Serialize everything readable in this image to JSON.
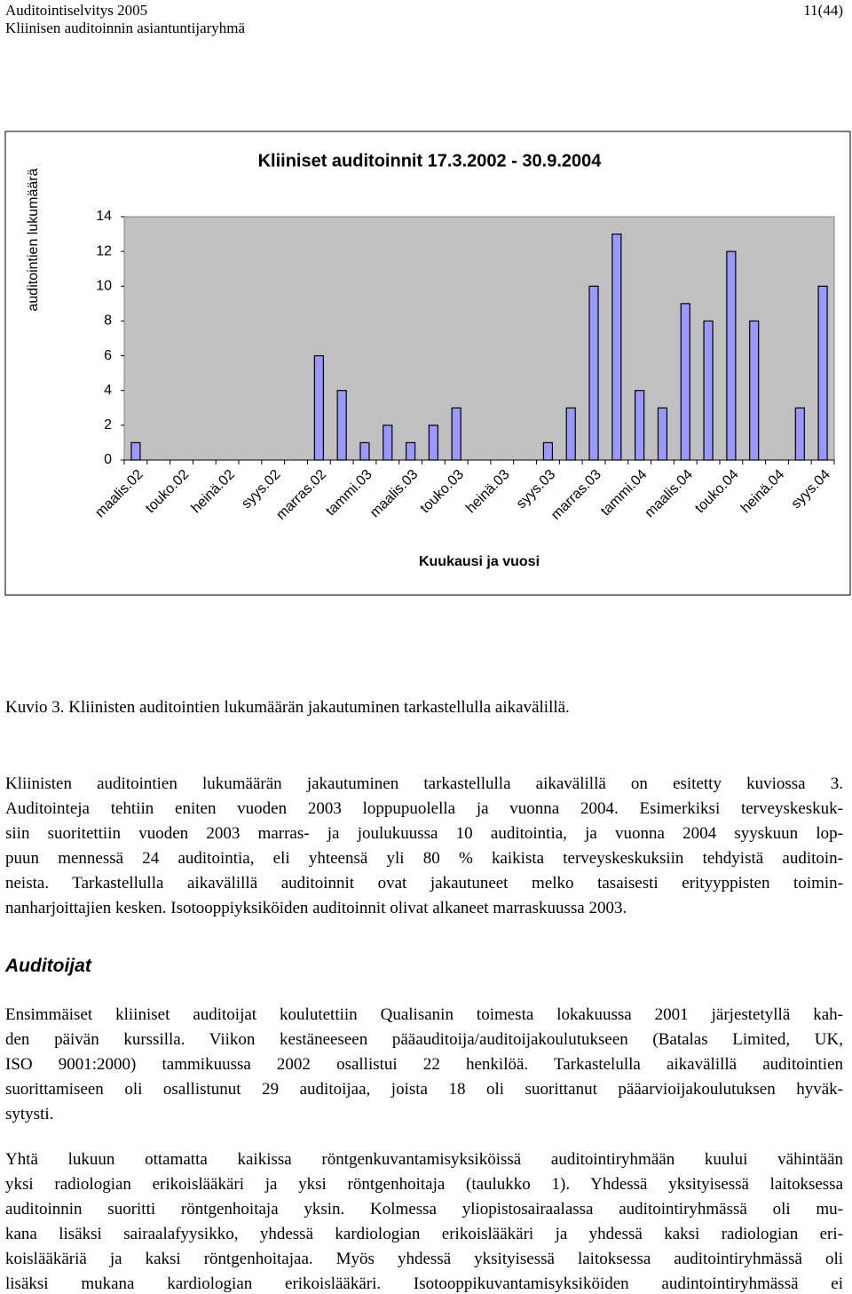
{
  "header": {
    "title": "Auditointiselvitys 2005",
    "subtitle": "Kliinisen auditoinnin asiantuntijaryhmä",
    "page": "11(44)"
  },
  "chart_data": {
    "type": "bar",
    "title": "Kliiniset auditoinnit 17.3.2002 - 30.9.2004",
    "y_label": "auditointien lukumäärä",
    "x_label": "Kuukausi ja vuosi",
    "categories": [
      "maalis.02",
      null,
      "touko.02",
      null,
      "heinä.02",
      null,
      "syys.02",
      null,
      "marras.02",
      null,
      "tammi.03",
      null,
      "maalis.03",
      null,
      "touko.03",
      null,
      "heinä.03",
      null,
      "syys.03",
      null,
      "marras.03",
      null,
      "tammi.04",
      null,
      "maalis.04",
      null,
      "touko.04",
      null,
      "heinä.04",
      null,
      "syys.04"
    ],
    "values": [
      1,
      0,
      0,
      0,
      0,
      0,
      0,
      0,
      6,
      4,
      1,
      2,
      1,
      2,
      3,
      0,
      0,
      0,
      1,
      3,
      10,
      13,
      4,
      3,
      9,
      8,
      12,
      8,
      0,
      3,
      10
    ],
    "color": "#9999ff",
    "plot_background": "#c0c0c0",
    "ylim": [
      0,
      14
    ],
    "yticks": [
      0,
      2,
      4,
      6,
      8,
      10,
      12,
      14
    ],
    "grid": false
  },
  "caption": "Kuvio 3. Kliinisten auditointien lukumäärän jakautuminen tarkastellulla aikavälillä.",
  "paragraphs": [
    [
      "Kliinisten auditointien lukumäärän jakautuminen tarkastellulla aikavälillä on esitetty kuviossa 3.",
      "Auditointeja tehtiin eniten vuoden 2003 loppupuolella ja vuonna 2004. Esimerkiksi terveyskeskuk-",
      "siin suoritettiin vuoden 2003 marras- ja joulukuussa 10 auditointia, ja vuonna 2004 syyskuun lop-",
      "puun mennessä 24 auditointia, eli yhteensä yli 80 % kaikista terveyskeskuksiin tehdyistä auditoin-",
      "neista. Tarkastellulla aikavälillä auditoinnit ovat jakautuneet melko tasaisesti erityyppisten toimin-",
      "nanharjoittajien kesken. Isotooppiyksiköiden auditoinnit olivat alkaneet marraskuussa 2003."
    ]
  ],
  "section": {
    "heading": "Auditoijat",
    "paragraphs": [
      [
        "Ensimmäiset kliiniset auditoijat koulutettiin Qualisanin toimesta lokakuussa 2001 järjestetyllä kah-",
        "den päivän kurssilla. Viikon kestäneeseen pääauditoija/auditoijakoulutukseen (Batalas Limited, UK,",
        "ISO 9001:2000) tammikuussa 2002 osallistui 22 henkilöä. Tarkastelulla aikavälillä auditointien",
        "suorittamiseen oli osallistunut 29 auditoijaa, joista 18 oli suorittanut pääarvioijakoulutuksen hyväk-",
        "sytysti."
      ],
      [
        "Yhtä lukuun ottamatta kaikissa röntgenkuvantamisyksiköissä auditointiryhmään kuului vähintään",
        "yksi radiologian erikoislääkäri ja yksi röntgenhoitaja (taulukko 1). Yhdessä yksityisessä laitoksessa",
        "auditoinnin suoritti röntgenhoitaja yksin. Kolmessa yliopistosairaalassa auditointiryhmässä oli mu-",
        "kana lisäksi sairaalafyysikko, yhdessä kardiologian erikoislääkäri ja yhdessä kaksi radiologian eri-",
        "koislääkäriä ja kaksi röntgenhoitajaa. Myös yhdessä yksityisessä laitoksessa auditointiryhmässä oli",
        "lisäksi mukana kardiologian erikoislääkäri. Isotooppikuvantamisyksiköiden audintointiryhmässä ei"
      ]
    ]
  }
}
